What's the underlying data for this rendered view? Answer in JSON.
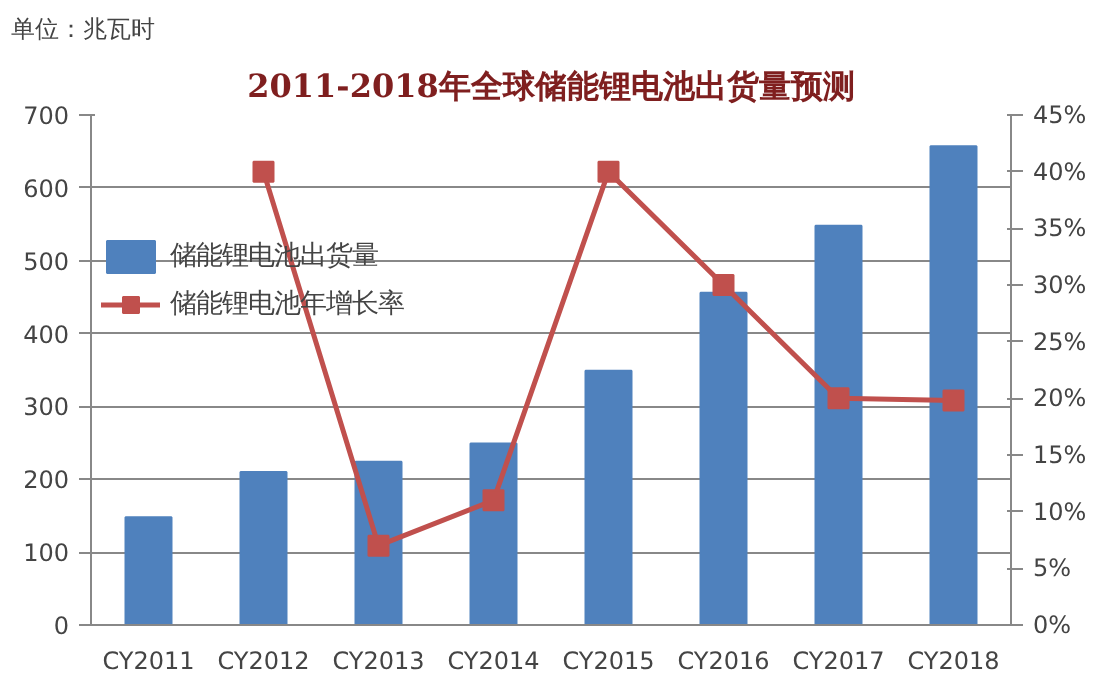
{
  "chart_data": {
    "type": "bar",
    "title": "2011-2018年全球储能锂电池出货量预测",
    "annotations": [
      "单位：兆瓦时"
    ],
    "categories": [
      "CY2011",
      "CY2012",
      "CY2013",
      "CY2014",
      "CY2015",
      "CY2016",
      "CY2017",
      "CY2018"
    ],
    "series": [
      {
        "name": "储能锂电池出货量",
        "color": "#4f81bd",
        "values": [
          148,
          210,
          224,
          249,
          349,
          456,
          548,
          657
        ]
      },
      {
        "name": "储能锂电池年增长率",
        "type": "line",
        "axis": "y2",
        "color": "#c0504d",
        "marker": "square",
        "values": [
          null,
          40,
          7,
          11,
          40,
          30,
          20,
          19.8
        ]
      }
    ],
    "ylim": [
      0,
      700
    ],
    "yticks": [
      0,
      100,
      200,
      300,
      400,
      500,
      600,
      700
    ],
    "y2lim": [
      0,
      45
    ],
    "y2ticks": [
      {
        "value": 0,
        "label": "0%"
      },
      {
        "value": 5,
        "label": "5%"
      },
      {
        "value": 10,
        "label": "10%"
      },
      {
        "value": 15,
        "label": "15%"
      },
      {
        "value": 20,
        "label": "20%"
      },
      {
        "value": 25,
        "label": "25%"
      },
      {
        "value": 30,
        "label": "30%"
      },
      {
        "value": 35,
        "label": "35%"
      },
      {
        "value": 40,
        "label": "40%"
      },
      {
        "value": 45,
        "label": "45%"
      }
    ],
    "grid": "y",
    "legend": "left"
  }
}
